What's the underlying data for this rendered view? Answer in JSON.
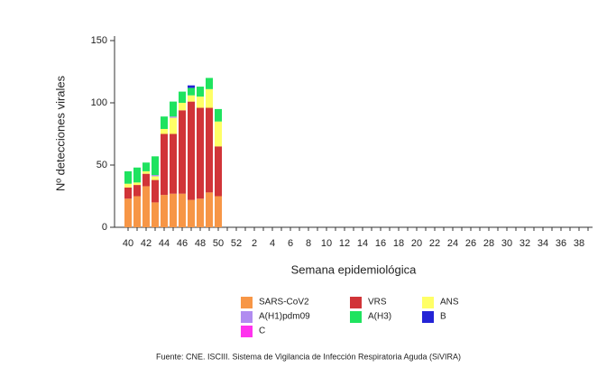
{
  "chart_data": {
    "type": "stacked_bar",
    "y_label": "Nº detecciones virales",
    "x_label": "Semana epidemiológica",
    "source": "Fuente: CNE. ISCIII. Sistema de Vigilancia de Infección Respiratoria Aguda (SiVIRA)",
    "categories": [
      "40",
      null,
      "42",
      null,
      "44",
      null,
      "46",
      null,
      "48",
      null,
      "50",
      null,
      "52",
      null,
      "2",
      null,
      "4",
      null,
      "6",
      null,
      "8",
      null,
      "10",
      null,
      "12",
      null,
      "14",
      null,
      "16",
      null,
      "18",
      null,
      "20",
      null,
      "22",
      null,
      "24",
      null,
      "26",
      null,
      "28",
      null,
      "30",
      null,
      "32",
      null,
      "34",
      null,
      "36",
      null,
      "38",
      null
    ],
    "ylim": [
      0,
      150
    ],
    "yticks": [
      0,
      50,
      100,
      150
    ],
    "series": [
      {
        "name": "SARS-CoV2",
        "color": "#f79646",
        "values": [
          23,
          25,
          33,
          20,
          26,
          27,
          27,
          22,
          23,
          28,
          25,
          null,
          null,
          null,
          null,
          null,
          null,
          null,
          null,
          null,
          null,
          null,
          null,
          null,
          null,
          null,
          null,
          null,
          null,
          null,
          null,
          null,
          null,
          null,
          null,
          null,
          null,
          null,
          null,
          null,
          null,
          null,
          null,
          null,
          null,
          null,
          null,
          null,
          null,
          null,
          null,
          null
        ]
      },
      {
        "name": "VRS",
        "color": "#d13438",
        "values": [
          9,
          9,
          10,
          18,
          49,
          48,
          67,
          79,
          73,
          68,
          40,
          null,
          null,
          null,
          null,
          null,
          null,
          null,
          null,
          null,
          null,
          null,
          null,
          null,
          null,
          null,
          null,
          null,
          null,
          null,
          null,
          null,
          null,
          null,
          null,
          null,
          null,
          null,
          null,
          null,
          null,
          null,
          null,
          null,
          null,
          null,
          null,
          null,
          null,
          null,
          null,
          null
        ]
      },
      {
        "name": "ANS",
        "color": "#ffff66",
        "values": [
          3,
          2,
          2,
          3,
          4,
          13,
          6,
          5,
          9,
          15,
          20,
          null,
          null,
          null,
          null,
          null,
          null,
          null,
          null,
          null,
          null,
          null,
          null,
          null,
          null,
          null,
          null,
          null,
          null,
          null,
          null,
          null,
          null,
          null,
          null,
          null,
          null,
          null,
          null,
          null,
          null,
          null,
          null,
          null,
          null,
          null,
          null,
          null,
          null,
          null,
          null,
          null
        ]
      },
      {
        "name": "A(H1)pdm09",
        "color": "#b18cf0",
        "values": [
          0,
          0,
          0,
          1,
          0,
          1,
          0,
          0,
          0,
          0,
          0,
          null,
          null,
          null,
          null,
          null,
          null,
          null,
          null,
          null,
          null,
          null,
          null,
          null,
          null,
          null,
          null,
          null,
          null,
          null,
          null,
          null,
          null,
          null,
          null,
          null,
          null,
          null,
          null,
          null,
          null,
          null,
          null,
          null,
          null,
          null,
          null,
          null,
          null,
          null,
          null,
          null
        ]
      },
      {
        "name": "A(H3)",
        "color": "#1fe35f",
        "values": [
          10,
          12,
          7,
          15,
          10,
          12,
          9,
          6,
          8,
          9,
          10,
          null,
          null,
          null,
          null,
          null,
          null,
          null,
          null,
          null,
          null,
          null,
          null,
          null,
          null,
          null,
          null,
          null,
          null,
          null,
          null,
          null,
          null,
          null,
          null,
          null,
          null,
          null,
          null,
          null,
          null,
          null,
          null,
          null,
          null,
          null,
          null,
          null,
          null,
          null,
          null,
          null
        ]
      },
      {
        "name": "B",
        "color": "#2323d6",
        "values": [
          0,
          0,
          0,
          0,
          0,
          0,
          0,
          2,
          0,
          0,
          0,
          null,
          null,
          null,
          null,
          null,
          null,
          null,
          null,
          null,
          null,
          null,
          null,
          null,
          null,
          null,
          null,
          null,
          null,
          null,
          null,
          null,
          null,
          null,
          null,
          null,
          null,
          null,
          null,
          null,
          null,
          null,
          null,
          null,
          null,
          null,
          null,
          null,
          null,
          null,
          null,
          null
        ]
      },
      {
        "name": "C",
        "color": "#ff33ee",
        "values": [
          0,
          0,
          0,
          0,
          0,
          0,
          0,
          0,
          0,
          0,
          0,
          null,
          null,
          null,
          null,
          null,
          null,
          null,
          null,
          null,
          null,
          null,
          null,
          null,
          null,
          null,
          null,
          null,
          null,
          null,
          null,
          null,
          null,
          null,
          null,
          null,
          null,
          null,
          null,
          null,
          null,
          null,
          null,
          null,
          null,
          null,
          null,
          null,
          null,
          null,
          null,
          null
        ]
      }
    ]
  }
}
